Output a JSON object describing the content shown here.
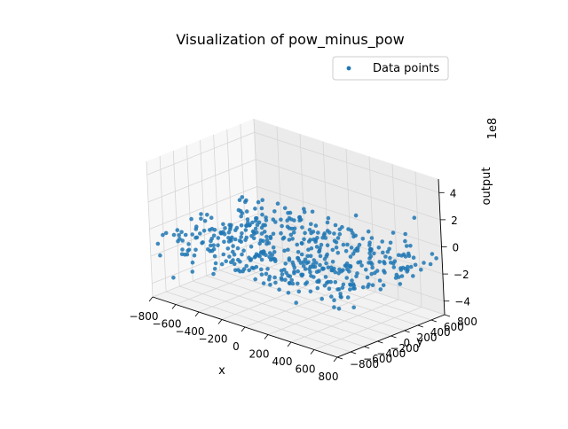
{
  "chart_data": {
    "type": "scatter",
    "projection": "3d",
    "title": "Visualization of pow_minus_pow",
    "xlabel": "x",
    "ylabel": "y",
    "zlabel": "output",
    "z_offset_label": "1e8",
    "xlim": [
      -800,
      800
    ],
    "ylim": [
      -800,
      800
    ],
    "zlim": [
      -5,
      5
    ],
    "z_units": "1e8",
    "x_ticks": [
      "−800",
      "−600",
      "−400",
      "−200",
      "0",
      "200",
      "400",
      "600",
      "800"
    ],
    "y_ticks": [
      "−800",
      "−600",
      "−400",
      "−200",
      "0",
      "200",
      "400",
      "600",
      "800"
    ],
    "z_ticks": [
      "−4",
      "−2",
      "0",
      "2",
      "4"
    ],
    "x_tick_values": [
      -800,
      -600,
      -400,
      -200,
      0,
      200,
      400,
      600,
      800
    ],
    "y_tick_values": [
      -800,
      -600,
      -400,
      -200,
      0,
      200,
      400,
      600,
      800
    ],
    "z_tick_values": [
      -4,
      -2,
      0,
      2,
      4
    ],
    "grid": true,
    "legend": {
      "position": "top-right",
      "entries": [
        "Data points"
      ]
    },
    "series": [
      {
        "name": "Data points",
        "color": "#1f77b4",
        "n_points": 500,
        "x_range": [
          -800,
          800
        ],
        "y_range": [
          -800,
          800
        ],
        "z_range": [
          -3.6,
          1.8
        ],
        "pattern": "uniform random x and y; output mostly between -2 and 0 (1e8), denser near center, a few outliers",
        "points": [
          [
            -700,
            -650,
            -3.6
          ],
          [
            -720,
            500,
            -0.2
          ],
          [
            620,
            720,
            1.8
          ],
          [
            150,
            650,
            0.8
          ],
          [
            -500,
            -700,
            -2.5
          ],
          [
            700,
            -300,
            -0.3
          ],
          [
            -650,
            300,
            -0.8
          ],
          [
            500,
            600,
            0.6
          ]
        ]
      }
    ]
  }
}
